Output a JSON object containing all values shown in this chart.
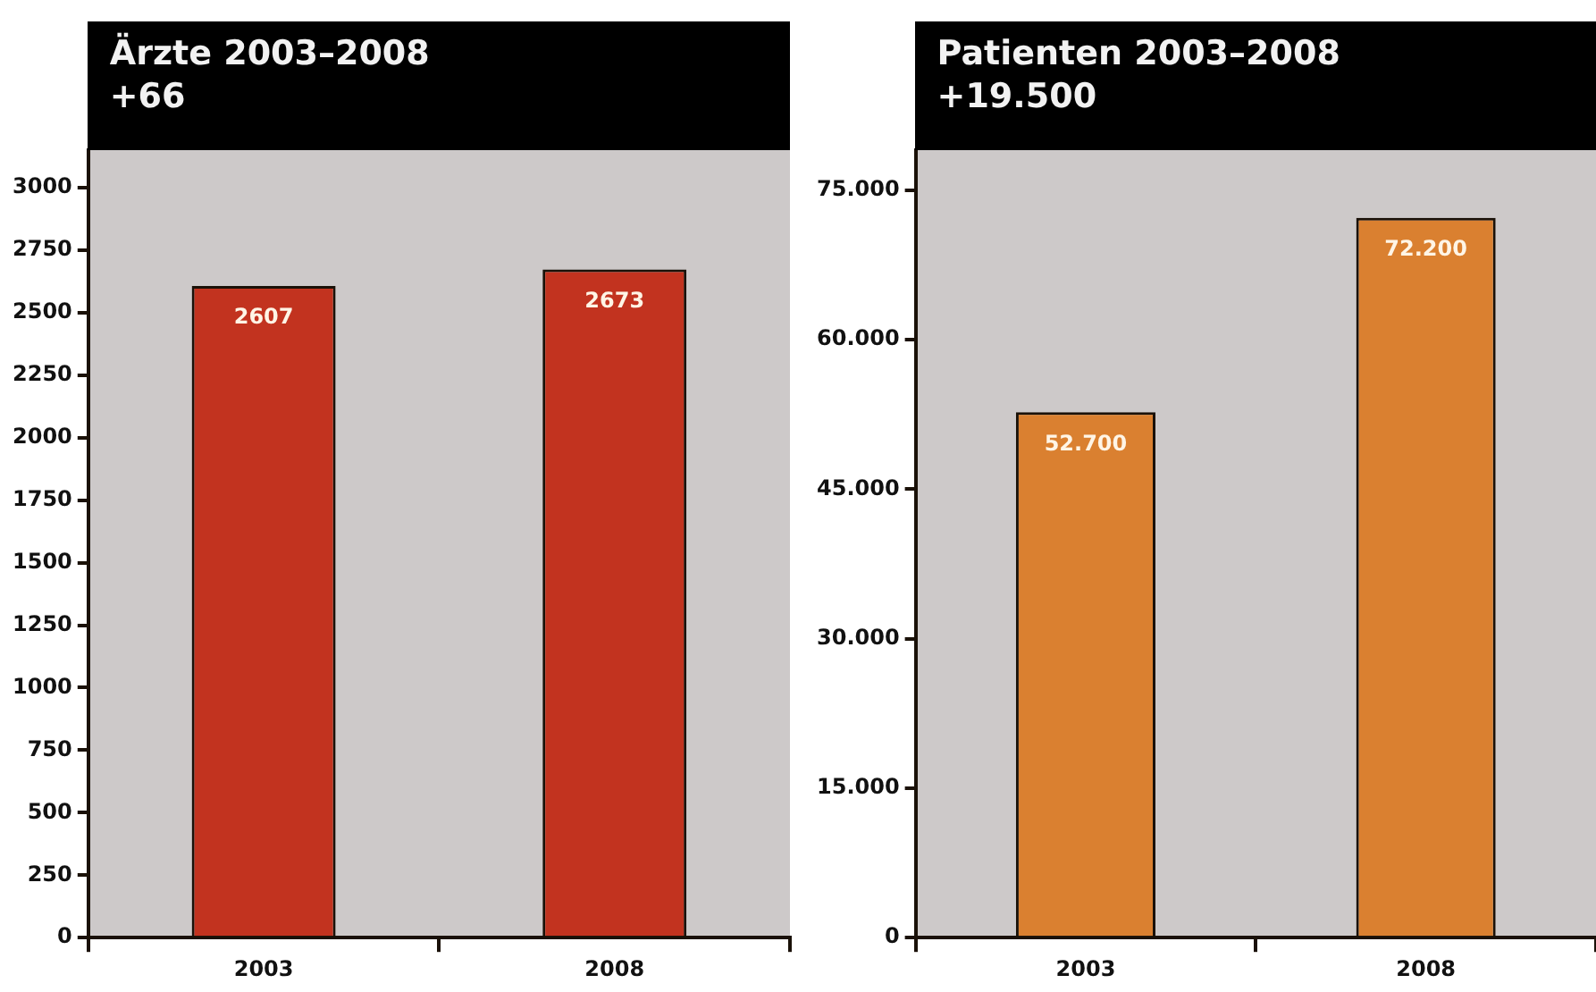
{
  "chart_data": [
    {
      "type": "bar",
      "title": "Ärzte 2003–2008",
      "subtitle": "+66",
      "categories": [
        "2003",
        "2008"
      ],
      "values": [
        2607,
        2673
      ],
      "color": "#c2331f",
      "ylim": [
        0,
        3150
      ],
      "yticks": [
        0,
        250,
        500,
        750,
        1000,
        1250,
        1500,
        1750,
        2000,
        2250,
        2500,
        2750,
        3000
      ],
      "data_labels": true
    },
    {
      "type": "bar",
      "title": "Patienten 2003–2008",
      "subtitle": "+19.500",
      "categories": [
        "2003",
        "2008"
      ],
      "values": [
        52700,
        72200
      ],
      "color": "#da8030",
      "ylim": [
        0,
        79000
      ],
      "yticks": [
        {
          "value": 0,
          "label": "0"
        },
        {
          "value": 15000,
          "label": "15.000"
        },
        {
          "value": 30000,
          "label": "30.000"
        },
        {
          "value": 45000,
          "label": "45.000"
        },
        {
          "value": 60000,
          "label": "60.000"
        },
        {
          "value": 75000,
          "label": "75.000"
        }
      ],
      "value_labels": [
        "52.700",
        "72.200"
      ]
    }
  ]
}
